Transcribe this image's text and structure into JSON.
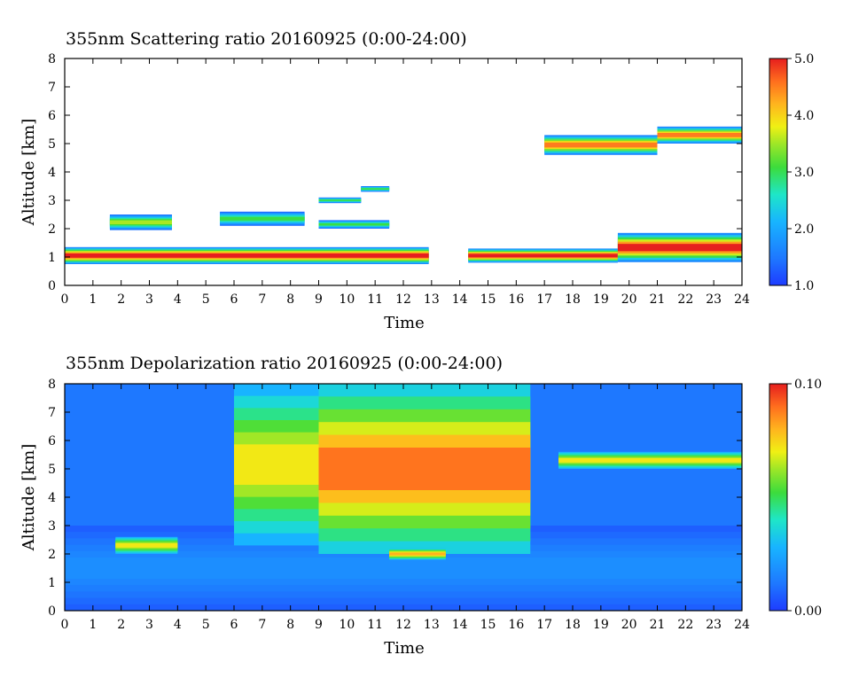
{
  "chart_data": [
    {
      "type": "heatmap",
      "title": "355nm Scattering ratio  20160925 (0:00-24:00)",
      "xlabel": "Time",
      "ylabel": "Altitude [km]",
      "xlim": [
        0,
        24
      ],
      "ylim": [
        0,
        8
      ],
      "x_ticks": [
        "0",
        "1",
        "2",
        "3",
        "4",
        "5",
        "6",
        "7",
        "8",
        "9",
        "10",
        "11",
        "12",
        "13",
        "14",
        "15",
        "16",
        "17",
        "18",
        "19",
        "20",
        "21",
        "22",
        "23",
        "24"
      ],
      "y_ticks": [
        "0",
        "1",
        "2",
        "3",
        "4",
        "5",
        "6",
        "7",
        "8"
      ],
      "colorbar": {
        "min": 1.0,
        "max": 5.0,
        "ticks": [
          "1.0",
          "2.0",
          "3.0",
          "4.0",
          "5.0"
        ]
      },
      "features": [
        {
          "t0": 0,
          "t1": 12.9,
          "base": 0.75,
          "top": 1.35,
          "peak": 5.0
        },
        {
          "t0": 14.3,
          "t1": 19.6,
          "base": 0.8,
          "top": 1.3,
          "peak": 5.0
        },
        {
          "t0": 19.6,
          "t1": 24,
          "base": 0.82,
          "top": 1.85,
          "peak": 5.0
        },
        {
          "t0": 1.6,
          "t1": 3.8,
          "base": 1.95,
          "top": 2.5,
          "peak": 3.5
        },
        {
          "t0": 5.5,
          "t1": 8.5,
          "base": 2.1,
          "top": 2.6,
          "peak": 3.0
        },
        {
          "t0": 9,
          "t1": 11.5,
          "base": 2.0,
          "top": 2.3,
          "peak": 3.0
        },
        {
          "t0": 9,
          "t1": 10.5,
          "base": 2.9,
          "top": 3.1,
          "peak": 3.0
        },
        {
          "t0": 10.5,
          "t1": 11.5,
          "base": 3.3,
          "top": 3.5,
          "peak": 3.0
        },
        {
          "t0": 17,
          "t1": 21,
          "base": 4.6,
          "top": 5.3,
          "peak": 4.5
        },
        {
          "t0": 21,
          "t1": 24,
          "base": 5.0,
          "top": 5.6,
          "peak": 4.5
        }
      ]
    },
    {
      "type": "heatmap",
      "title": "355nm Depolarization ratio  20160925 (0:00-24:00)",
      "xlabel": "Time",
      "ylabel": "Altitude [km]",
      "xlim": [
        0,
        24
      ],
      "ylim": [
        0,
        8
      ],
      "x_ticks": [
        "0",
        "1",
        "2",
        "3",
        "4",
        "5",
        "6",
        "7",
        "8",
        "9",
        "10",
        "11",
        "12",
        "13",
        "14",
        "15",
        "16",
        "17",
        "18",
        "19",
        "20",
        "21",
        "22",
        "23",
        "24"
      ],
      "y_ticks": [
        "0",
        "1",
        "2",
        "3",
        "4",
        "5",
        "6",
        "7",
        "8"
      ],
      "colorbar": {
        "min": 0.0,
        "max": 0.1,
        "ticks": [
          "0.00",
          "0.10"
        ]
      },
      "features": [
        {
          "t0": 0,
          "t1": 24,
          "base": 0,
          "top": 3.0,
          "peak": 0.02
        },
        {
          "t0": 9,
          "t1": 16.5,
          "base": 2.0,
          "top": 8.0,
          "peak": 0.1
        },
        {
          "t0": 6,
          "t1": 9,
          "base": 2.3,
          "top": 8.0,
          "peak": 0.08
        },
        {
          "t0": 1.8,
          "t1": 4,
          "base": 2.0,
          "top": 2.6,
          "peak": 0.08
        },
        {
          "t0": 11.5,
          "t1": 13.5,
          "base": 1.8,
          "top": 2.2,
          "peak": 0.09
        },
        {
          "t0": 17.5,
          "t1": 24,
          "base": 5.0,
          "top": 5.6,
          "peak": 0.08
        }
      ]
    }
  ]
}
